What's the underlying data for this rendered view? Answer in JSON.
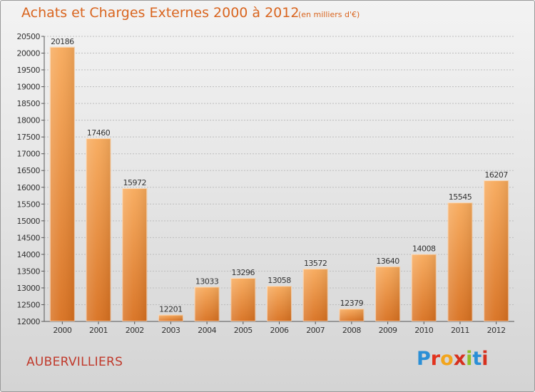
{
  "header": {
    "title": "Achats et Charges Externes 2000 à 2012",
    "subtitle": "(en milliers d'€)"
  },
  "footer": {
    "place": "AUBERVILLIERS",
    "logo_letters": [
      "P",
      "r",
      "o",
      "x",
      "i",
      "t",
      "i"
    ],
    "logo_colors": [
      "#2b8fd6",
      "#e2331e",
      "#f2a51d",
      "#d6301e",
      "#8fbf26",
      "#2b8fd6",
      "#d6301e"
    ]
  },
  "chart_data": {
    "type": "bar",
    "categories": [
      "2000",
      "2001",
      "2002",
      "2003",
      "2004",
      "2005",
      "2006",
      "2007",
      "2008",
      "2009",
      "2010",
      "2011",
      "2012"
    ],
    "values": [
      20186,
      17460,
      15972,
      12201,
      13033,
      13296,
      13058,
      13572,
      12379,
      13640,
      14008,
      15545,
      16207
    ],
    "ylim": [
      12000,
      20500
    ],
    "yticks": [
      12000,
      12500,
      13000,
      13500,
      14000,
      14500,
      15000,
      15500,
      16000,
      16500,
      17000,
      17500,
      18000,
      18500,
      19000,
      19500,
      20000,
      20500
    ],
    "grid": true,
    "bar_color": "#e8822f",
    "title": "Achats et Charges Externes 2000 à 2012",
    "xlabel": "",
    "ylabel": ""
  }
}
